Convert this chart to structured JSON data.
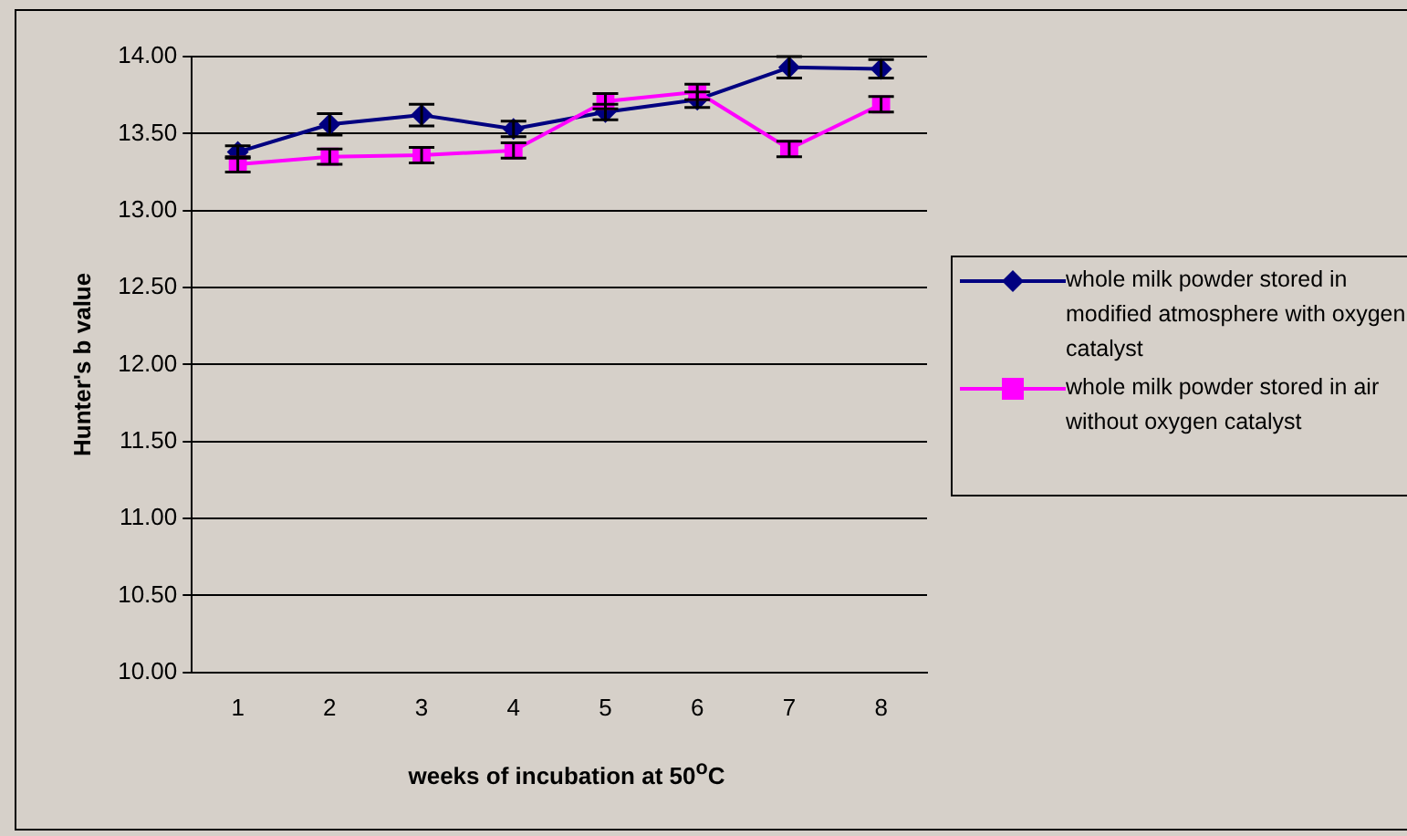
{
  "chart_data": {
    "type": "line",
    "xlabel": "weeks of incubation at 50$^{o}$C",
    "ylabel": "Hunter's b value",
    "categories": [
      "1",
      "2",
      "3",
      "4",
      "5",
      "6",
      "7",
      "8"
    ],
    "series": [
      {
        "name": "whole milk powder stored in modified atmosphere with oxygen catalyst",
        "color": "#000080",
        "marker": "diamond",
        "values": [
          13.38,
          13.56,
          13.62,
          13.53,
          13.64,
          13.72,
          13.93,
          13.92
        ],
        "errors": [
          0.04,
          0.07,
          0.07,
          0.05,
          0.05,
          0.05,
          0.07,
          0.06
        ]
      },
      {
        "name": "whole milk powder stored in air without oxygen catalyst",
        "color": "#ff00ff",
        "marker": "square",
        "values": [
          13.3,
          13.35,
          13.36,
          13.39,
          13.71,
          13.77,
          13.4,
          13.69
        ],
        "errors": [
          0.05,
          0.05,
          0.05,
          0.05,
          0.05,
          0.05,
          0.05,
          0.05
        ]
      }
    ],
    "ylim": [
      10,
      14
    ],
    "yticks": [
      {
        "value": 10,
        "label": "10.00"
      },
      {
        "value": 10.5,
        "label": "10.50"
      },
      {
        "value": 11,
        "label": "11.00"
      },
      {
        "value": 11.5,
        "label": "11.50"
      },
      {
        "value": 12,
        "label": "12.00"
      },
      {
        "value": 12.5,
        "label": "12.50"
      },
      {
        "value": 13,
        "label": "13.00"
      },
      {
        "value": 13.5,
        "label": "13.50"
      },
      {
        "value": 14,
        "label": "14.00"
      }
    ],
    "grid": "y",
    "legend": "right",
    "line_style": "solid"
  }
}
